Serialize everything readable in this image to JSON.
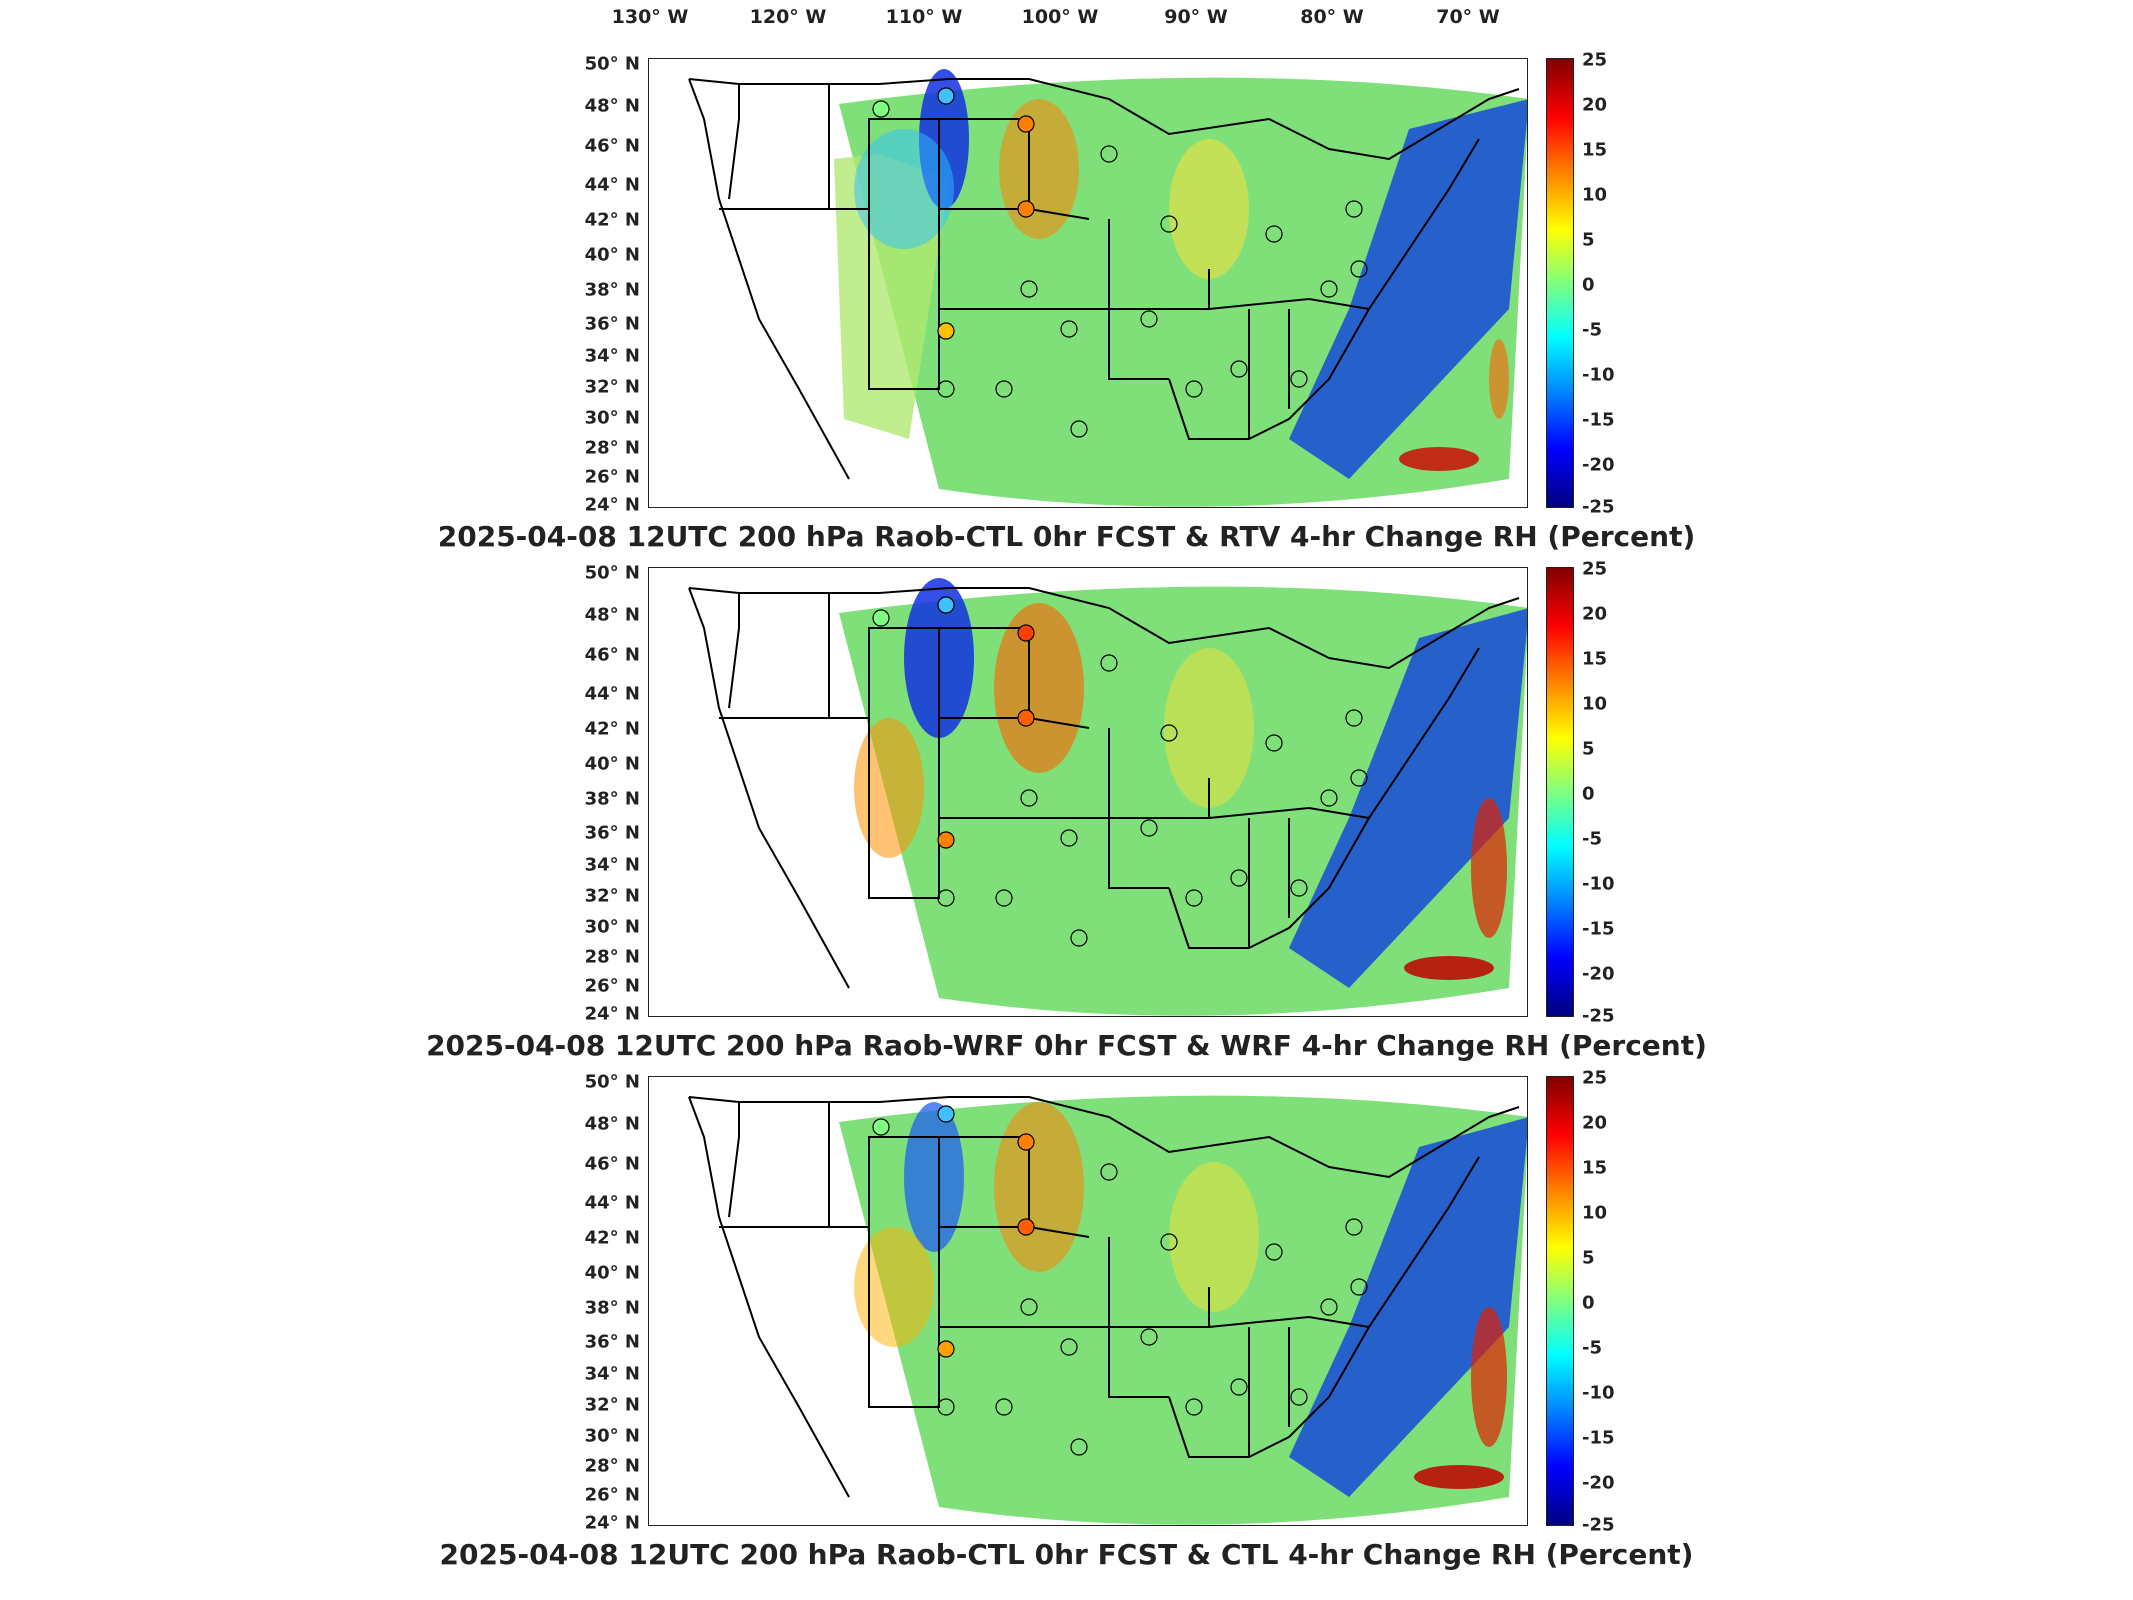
{
  "longitude_labels": [
    "130° W",
    "120° W",
    "110° W",
    "100° W",
    "90° W",
    "80° W",
    "70° W"
  ],
  "latitude_labels": [
    "50° N",
    "48° N",
    "46° N",
    "44° N",
    "42° N",
    "40° N",
    "38° N",
    "36° N",
    "34° N",
    "32° N",
    "30° N",
    "28° N",
    "26° N",
    "24° N"
  ],
  "colorbar_ticks": [
    "25",
    "20",
    "15",
    "10",
    "5",
    "0",
    "-5",
    "-10",
    "-15",
    "-20",
    "-25"
  ],
  "colors": {
    "scale": [
      "#800000",
      "#ff0000",
      "#ff8800",
      "#ffff00",
      "#80ff80",
      "#00ffff",
      "#0088ff",
      "#0000ff",
      "#000080"
    ],
    "background_field": "#7fe07a",
    "map_lines": "#000000"
  },
  "panels": [
    {
      "title": "2025-04-08 12UTC 200 hPa Raob-CTL 0hr FCST & RTV 4-hr Change RH (Percent)"
    },
    {
      "title": "2025-04-08 12UTC 200 hPa Raob-WRF 0hr FCST & WRF 4-hr Change RH (Percent)"
    },
    {
      "title": "2025-04-08 12UTC 200 hPa Raob-CTL 0hr FCST & CTL 4-hr Change RH (Percent)"
    }
  ]
}
